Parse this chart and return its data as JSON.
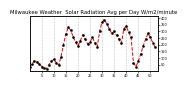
{
  "title": "Milwaukee Weather  Solar Radiation Avg per Day W/m2/minute",
  "title_fontsize": 3.8,
  "bg_color": "#ffffff",
  "line_color": "#dd0000",
  "line_style": "--",
  "line_width": 0.7,
  "marker": "s",
  "marker_size": 0.8,
  "marker_color": "#000000",
  "grid_color": "#888888",
  "grid_style": ":",
  "ylim": [
    0,
    420
  ],
  "xlim": [
    0,
    53
  ],
  "values": [
    30,
    55,
    80,
    70,
    55,
    35,
    25,
    20,
    50,
    75,
    90,
    65,
    45,
    110,
    200,
    280,
    330,
    310,
    260,
    220,
    190,
    230,
    275,
    245,
    205,
    220,
    255,
    215,
    180,
    305,
    370,
    390,
    355,
    320,
    285,
    300,
    270,
    240,
    210,
    320,
    340,
    295,
    255,
    65,
    35,
    75,
    130,
    190,
    240,
    285,
    255,
    215,
    180
  ],
  "xtick_positions": [
    5,
    10,
    15,
    20,
    25,
    30,
    35,
    40,
    45,
    50
  ],
  "xtick_labels": [
    "5",
    "10",
    "15",
    "20",
    "25",
    "30",
    "35",
    "40",
    "45",
    "50"
  ],
  "ytick_positions": [
    50,
    100,
    150,
    200,
    250,
    300,
    350,
    400
  ],
  "ytick_labels": [
    "50",
    "100",
    "150",
    "200",
    "250",
    "300",
    "350",
    "400"
  ],
  "vgrid_positions": [
    5,
    10,
    15,
    20,
    25,
    30,
    35,
    40,
    45,
    50
  ]
}
